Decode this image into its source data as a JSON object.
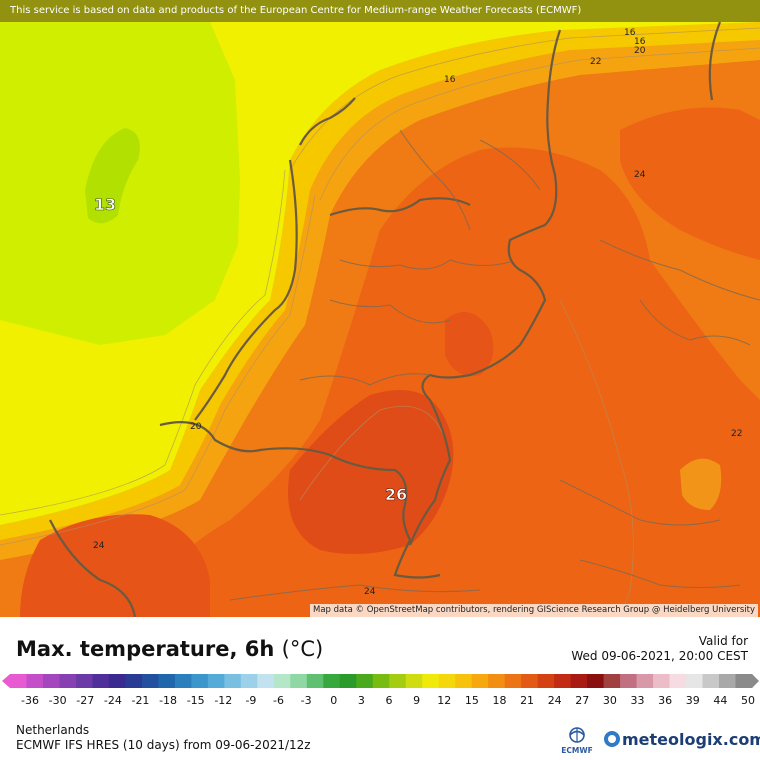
{
  "banner_text": "This service is based on data and products of the European Centre for Medium-range Weather Forecasts (ECMWF)",
  "attribution": "Map data © OpenStreetMap contributors, rendering GIScience Research Group @ Heidelberg University",
  "title": "Max. temperature, 6h",
  "unit": "(°C)",
  "valid_label": "Valid for",
  "valid_time": "Wed 09-06-2021, 20:00 CEST",
  "region": "Netherlands",
  "model_run": "ECMWF IFS HRES (10 days) from  09-06-2021/12z",
  "ecmwf_logo_text": "ECMWF",
  "brand": "meteologix.com",
  "map_labels": {
    "l13": "13",
    "l26": "26",
    "l16a": "16",
    "l16b": "16",
    "l16c": "16",
    "l20a": "20",
    "l20b": "20",
    "l22a": "22",
    "l22b": "22",
    "l24a": "24",
    "l24b": "24",
    "l24c": "24"
  },
  "scale": {
    "ticks": [
      "-36",
      "-30",
      "-27",
      "-24",
      "-21",
      "-18",
      "-15",
      "-12",
      "-9",
      "-6",
      "-3",
      "0",
      "3",
      "6",
      "9",
      "12",
      "15",
      "18",
      "21",
      "24",
      "27",
      "30",
      "33",
      "36",
      "39",
      "44",
      "50"
    ],
    "colors": [
      "#e85ad2",
      "#c44ec9",
      "#a447be",
      "#8740b2",
      "#6b3aa7",
      "#512f9b",
      "#3a2a90",
      "#2a3b94",
      "#22509f",
      "#1f66aa",
      "#2a7fbc",
      "#3b96cc",
      "#55abd8",
      "#78bfe2",
      "#9dd1ea",
      "#c3e2f0",
      "#b4e6c8",
      "#8fd8a4",
      "#5fc070",
      "#36a83e",
      "#2a9a2a",
      "#4aa91c",
      "#78bc12",
      "#a4cc10",
      "#cedc10",
      "#f0ea0a",
      "#f5d80c",
      "#f6c20c",
      "#f6a80e",
      "#f28f12",
      "#ec7414",
      "#e35a14",
      "#d44214",
      "#c22c14",
      "#a81a12",
      "#8a1010",
      "#a04040",
      "#c07080",
      "#d898a8",
      "#ecbcc8",
      "#f6dce2",
      "#e6e6e6",
      "#c8c8c8",
      "#a8a8a8",
      "#8a8a8a"
    ]
  },
  "colors": {
    "sea_yellow": "#f0f000",
    "cold_green": "#c8ec00",
    "orange": "#f06010",
    "dark_orange": "#e04818"
  }
}
